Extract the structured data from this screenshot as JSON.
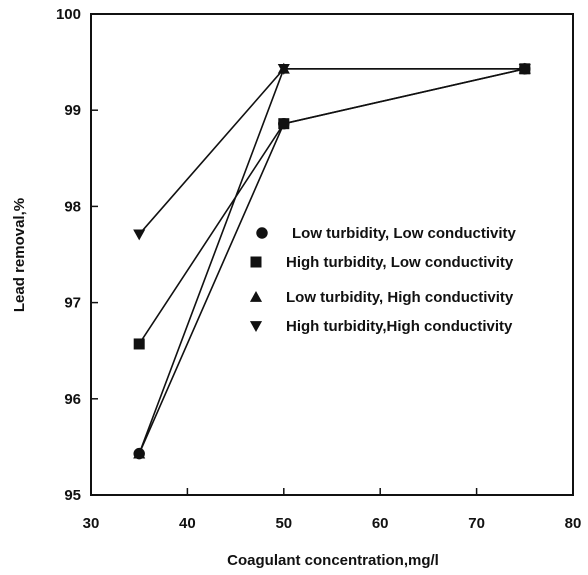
{
  "chart_data": {
    "type": "line",
    "title": "",
    "xlabel": "Coagulant concentration,mg/l",
    "ylabel": "Lead removal,%",
    "xlim": [
      30,
      80
    ],
    "ylim": [
      95,
      100
    ],
    "xticks": [
      30,
      40,
      50,
      60,
      70,
      80
    ],
    "yticks": [
      95,
      96,
      97,
      98,
      99,
      100
    ],
    "grid": false,
    "legend_position": "right-middle",
    "line_color": "#111111",
    "series": [
      {
        "name": "Low turbidity, Low conductivity",
        "marker": "circle",
        "x": [
          35,
          50,
          75
        ],
        "y": [
          95.43,
          98.86,
          99.43
        ]
      },
      {
        "name": "High turbidity, Low conductivity",
        "marker": "square",
        "x": [
          35,
          50,
          75
        ],
        "y": [
          96.57,
          98.86,
          99.43
        ]
      },
      {
        "name": "Low turbidity, High conductivity",
        "marker": "triangle-up",
        "x": [
          35,
          50,
          75
        ],
        "y": [
          95.43,
          99.43,
          99.43
        ]
      },
      {
        "name": "High turbidity,High conductivity",
        "marker": "triangle-down",
        "x": [
          35,
          50,
          75
        ],
        "y": [
          97.71,
          99.43,
          99.43
        ]
      }
    ]
  }
}
